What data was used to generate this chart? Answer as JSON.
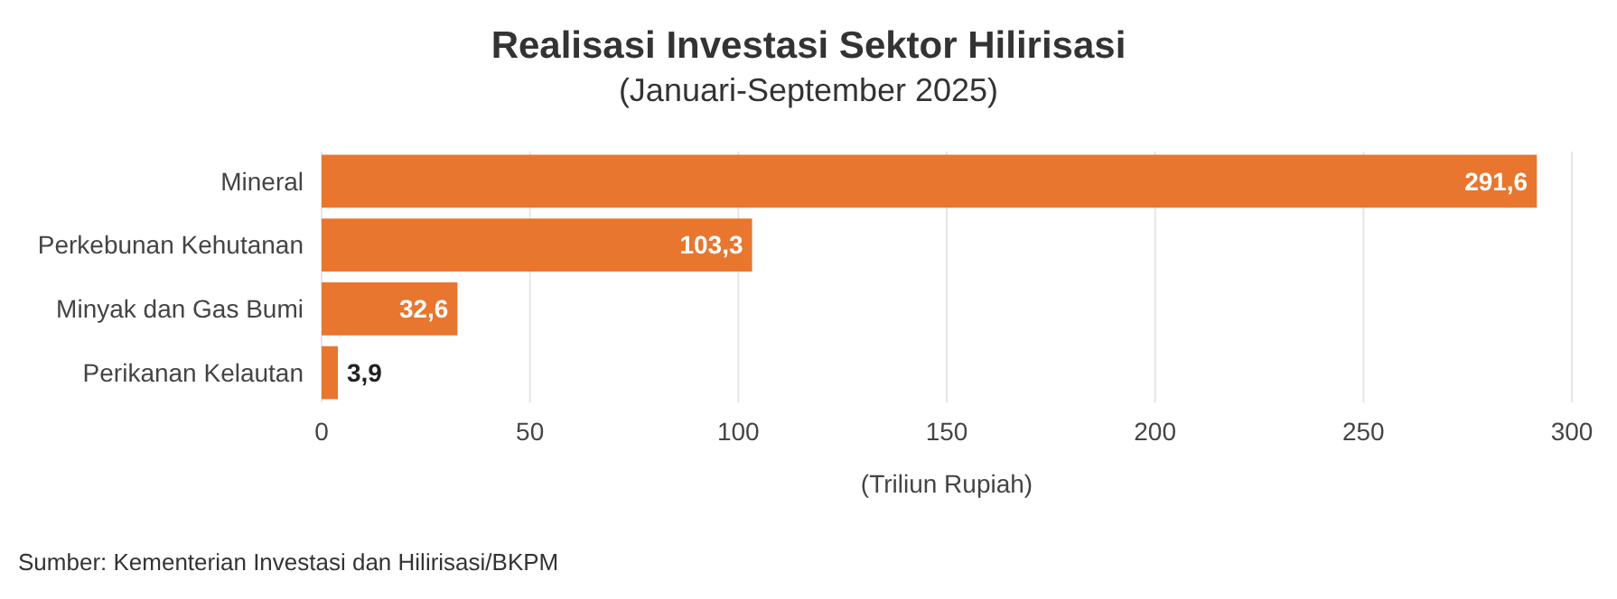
{
  "chart_data": {
    "type": "bar",
    "orientation": "horizontal",
    "title": "Realisasi Investasi Sektor Hilirisasi",
    "subtitle": "(Januari-September 2025)",
    "xlabel": "(Triliun Rupiah)",
    "categories": [
      "Mineral",
      "Perkebunan Kehutanan",
      "Minyak dan Gas Bumi",
      "Perikanan Kelautan"
    ],
    "values": [
      291.6,
      103.3,
      32.6,
      3.9
    ],
    "value_labels": [
      "291,6",
      "103,3",
      "32,6",
      "3,9"
    ],
    "color": "#e8762f",
    "xlim": [
      0,
      300
    ],
    "xticks": [
      0,
      50,
      100,
      150,
      200,
      250,
      300
    ],
    "grid": "x",
    "annotations": [
      "Sumber: Kementerian Investasi dan Hilirisasi/BKPM"
    ]
  }
}
